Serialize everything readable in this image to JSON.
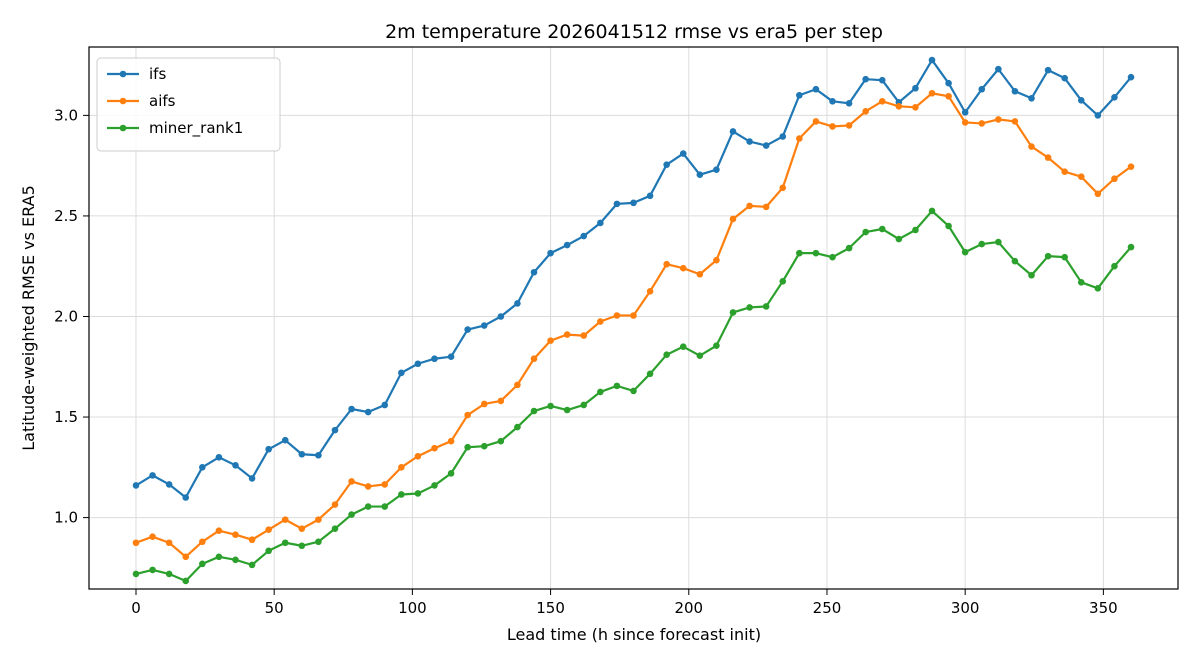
{
  "chart_data": {
    "type": "line",
    "title": "2m temperature 2026041512 rmse vs era5 per step",
    "xlabel": "Lead time (h since forecast init)",
    "ylabel": "Latitude-weighted RMSE vs ERA5",
    "xlim": [
      -17,
      377
    ],
    "ylim": [
      0.645,
      3.34
    ],
    "xticks": [
      "0",
      "50",
      "100",
      "150",
      "200",
      "250",
      "300",
      "350"
    ],
    "yticks": [
      "1.0",
      "1.5",
      "2.0",
      "2.5",
      "3.0"
    ],
    "grid": true,
    "legend_position": "top-left",
    "x": [
      0,
      6,
      12,
      18,
      24,
      30,
      36,
      42,
      48,
      54,
      60,
      66,
      72,
      78,
      84,
      90,
      96,
      102,
      108,
      114,
      120,
      126,
      132,
      138,
      144,
      150,
      156,
      162,
      168,
      174,
      180,
      186,
      192,
      198,
      204,
      210,
      216,
      222,
      228,
      234,
      240,
      246,
      252,
      258,
      264,
      270,
      276,
      282,
      288,
      294,
      300,
      306,
      312,
      318,
      324,
      330,
      336,
      342,
      348,
      354,
      360
    ],
    "series": [
      {
        "name": "ifs",
        "color": "#1f77b4",
        "values": [
          1.16,
          1.21,
          1.165,
          1.1,
          1.25,
          1.3,
          1.26,
          1.195,
          1.34,
          1.385,
          1.315,
          1.31,
          1.435,
          1.54,
          1.525,
          1.56,
          1.72,
          1.765,
          1.79,
          1.8,
          1.935,
          1.955,
          2.0,
          2.065,
          2.22,
          2.315,
          2.355,
          2.4,
          2.465,
          2.56,
          2.565,
          2.6,
          2.755,
          2.81,
          2.705,
          2.73,
          2.92,
          2.87,
          2.85,
          2.895,
          3.1,
          3.13,
          3.07,
          3.06,
          3.18,
          3.175,
          3.065,
          3.135,
          3.275,
          3.16,
          3.015,
          3.13,
          3.23,
          3.12,
          3.085,
          3.225,
          3.185,
          3.075,
          3.0,
          3.09,
          3.19
        ]
      },
      {
        "name": "aifs",
        "color": "#ff7f0e",
        "values": [
          0.875,
          0.905,
          0.875,
          0.805,
          0.88,
          0.935,
          0.915,
          0.89,
          0.94,
          0.99,
          0.945,
          0.99,
          1.065,
          1.18,
          1.155,
          1.165,
          1.25,
          1.305,
          1.345,
          1.38,
          1.51,
          1.565,
          1.58,
          1.66,
          1.79,
          1.88,
          1.91,
          1.905,
          1.975,
          2.005,
          2.005,
          2.125,
          2.26,
          2.24,
          2.21,
          2.28,
          2.485,
          2.55,
          2.545,
          2.64,
          2.885,
          2.97,
          2.945,
          2.95,
          3.02,
          3.07,
          3.045,
          3.04,
          3.11,
          3.095,
          2.965,
          2.96,
          2.98,
          2.97,
          2.845,
          2.79,
          2.72,
          2.695,
          2.61,
          2.685,
          2.745
        ]
      },
      {
        "name": "miner_rank1",
        "color": "#2ca02c",
        "values": [
          0.72,
          0.74,
          0.72,
          0.685,
          0.77,
          0.805,
          0.79,
          0.765,
          0.835,
          0.875,
          0.86,
          0.88,
          0.945,
          1.015,
          1.055,
          1.055,
          1.115,
          1.12,
          1.16,
          1.22,
          1.35,
          1.355,
          1.38,
          1.45,
          1.53,
          1.555,
          1.535,
          1.56,
          1.625,
          1.655,
          1.63,
          1.715,
          1.81,
          1.85,
          1.805,
          1.855,
          2.02,
          2.045,
          2.05,
          2.175,
          2.315,
          2.315,
          2.295,
          2.34,
          2.42,
          2.435,
          2.385,
          2.43,
          2.525,
          2.45,
          2.32,
          2.36,
          2.37,
          2.275,
          2.205,
          2.3,
          2.295,
          2.17,
          2.14,
          2.25,
          2.345
        ]
      }
    ]
  }
}
